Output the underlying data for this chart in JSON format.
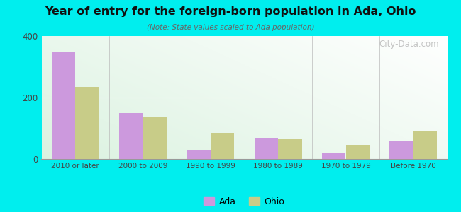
{
  "title": "Year of entry for the foreign-born population in Ada, Ohio",
  "subtitle": "(Note: State values scaled to Ada population)",
  "categories": [
    "2010 or later",
    "2000 to 2009",
    "1990 to 1999",
    "1980 to 1989",
    "1970 to 1979",
    "Before 1970"
  ],
  "ada_values": [
    350,
    150,
    30,
    70,
    20,
    60
  ],
  "ohio_values": [
    235,
    135,
    85,
    65,
    45,
    90
  ],
  "ada_color": "#cc99dd",
  "ohio_color": "#c8cc88",
  "background_outer": "#00eeee",
  "ylim": [
    0,
    400
  ],
  "yticks": [
    0,
    200,
    400
  ],
  "bar_width": 0.35,
  "legend_labels": [
    "Ada",
    "Ohio"
  ],
  "watermark": "City-Data.com"
}
